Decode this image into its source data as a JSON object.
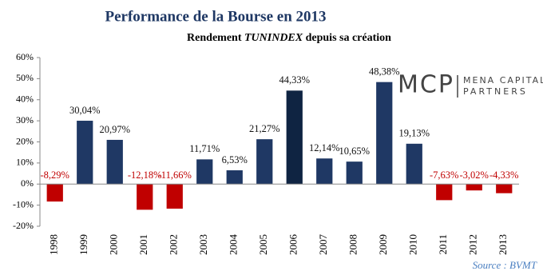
{
  "chart_data": {
    "type": "bar",
    "title": "Performance de la Bourse en 2013",
    "subtitle": [
      "Rendement",
      "TUNINDEX",
      "depuis sa création"
    ],
    "categories": [
      "1998",
      "1999",
      "2000",
      "2001",
      "2002",
      "2003",
      "2004",
      "2005",
      "2006",
      "2007",
      "2008",
      "2009",
      "2010",
      "2011",
      "2012",
      "2013"
    ],
    "values": [
      -8.29,
      30.04,
      20.97,
      -12.18,
      -11.66,
      11.71,
      6.53,
      21.27,
      44.33,
      12.14,
      10.65,
      48.38,
      19.13,
      -7.63,
      -3.02,
      -4.33
    ],
    "value_labels": [
      "-8,29%",
      "30,04%",
      "20,97%",
      "-12,18%",
      "-11,66%",
      "11,71%",
      "6,53%",
      "21,27%",
      "44,33%",
      "12,14%",
      "10,65%",
      "48,38%",
      "19,13%",
      "-7,63%",
      "-3,02%",
      "-4,33%"
    ],
    "colors": [
      "#c00000",
      "#1f3864",
      "#1f3864",
      "#c00000",
      "#c00000",
      "#1f3864",
      "#1f3864",
      "#1f3864",
      "#0f2442",
      "#1f3864",
      "#1f3864",
      "#1f3864",
      "#1f3864",
      "#c00000",
      "#c00000",
      "#c00000"
    ],
    "ylim": [
      -20,
      60
    ],
    "yticks": [
      {
        "value": -20,
        "label": "-20%"
      },
      {
        "value": -10,
        "label": "-10%"
      },
      {
        "value": 0,
        "label": "0%"
      },
      {
        "value": 10,
        "label": "10%"
      },
      {
        "value": 20,
        "label": "20%"
      },
      {
        "value": 30,
        "label": "30%"
      },
      {
        "value": 40,
        "label": "40%"
      },
      {
        "value": 50,
        "label": "50%"
      },
      {
        "value": 60,
        "label": "60%"
      }
    ],
    "grid": false,
    "logo": {
      "mark": "MCP",
      "line1": "MENA CAPITAL",
      "line2": "PARTNERS"
    },
    "source": "Source : BVMT"
  }
}
